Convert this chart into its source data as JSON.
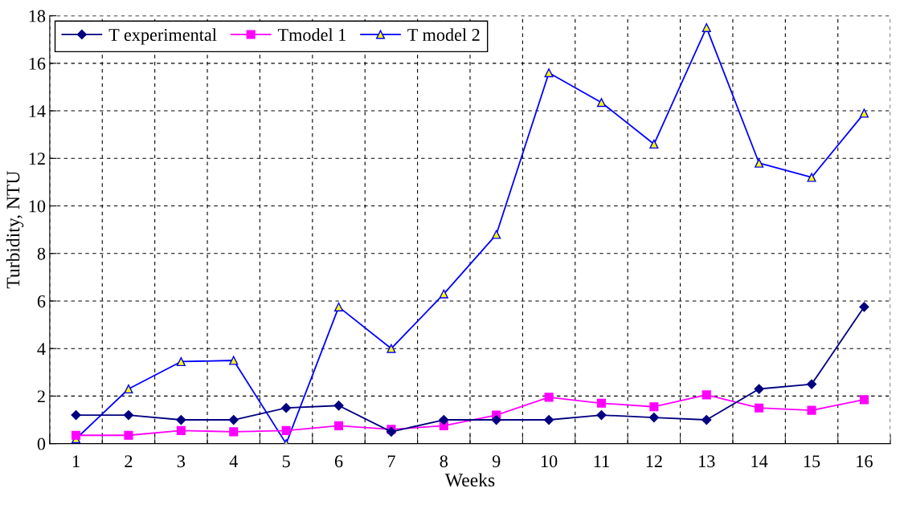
{
  "chart_data": {
    "type": "line",
    "xlabel": "Weeks",
    "ylabel": "Turbidity, NTU",
    "categories": [
      "1",
      "2",
      "3",
      "4",
      "5",
      "6",
      "7",
      "8",
      "9",
      "10",
      "11",
      "12",
      "13",
      "14",
      "15",
      "16"
    ],
    "series": [
      {
        "name": "T experimental",
        "color": "#000080",
        "marker": "diamond",
        "values": [
          1.2,
          1.2,
          1.0,
          1.0,
          1.5,
          1.6,
          0.5,
          1.0,
          1.0,
          1.0,
          1.2,
          1.1,
          1.0,
          2.3,
          2.5,
          5.75
        ]
      },
      {
        "name": "Tmodel 1",
        "color": "#ff00ff",
        "marker": "square",
        "values": [
          0.35,
          0.35,
          0.55,
          0.5,
          0.55,
          0.75,
          0.6,
          0.75,
          1.2,
          1.95,
          1.7,
          1.55,
          2.05,
          1.5,
          1.4,
          1.85
        ]
      },
      {
        "name": "T model 2",
        "color": "#0000ff",
        "marker": "triangle",
        "values": [
          0.2,
          2.3,
          3.45,
          3.5,
          0.0,
          5.75,
          4.0,
          6.3,
          8.8,
          15.6,
          14.35,
          12.6,
          17.5,
          11.8,
          11.2,
          13.9
        ]
      }
    ],
    "ylim": [
      0,
      18
    ],
    "yticks": [
      0,
      2,
      4,
      6,
      8,
      10,
      12,
      14,
      16,
      18
    ],
    "grid": true,
    "legend": "top left"
  }
}
